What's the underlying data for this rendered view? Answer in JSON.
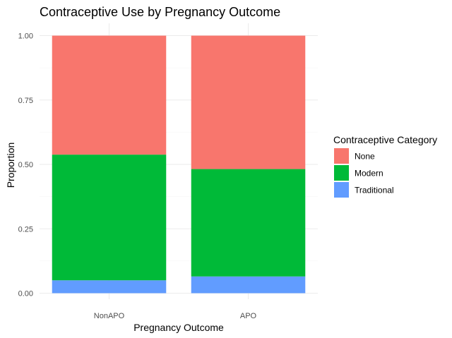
{
  "chart_data": {
    "type": "bar",
    "stacked": true,
    "title": "Contraceptive Use by Pregnancy Outcome",
    "xlabel": "Pregnancy Outcome",
    "ylabel": "Proportion",
    "categories": [
      "NonAPO",
      "APO"
    ],
    "series": [
      {
        "name": "Traditional",
        "color": "#619CFF",
        "values": [
          0.05,
          0.065
        ]
      },
      {
        "name": "Modern",
        "color": "#00BA38",
        "values": [
          0.488,
          0.417
        ]
      },
      {
        "name": "None",
        "color": "#F8766D",
        "values": [
          0.462,
          0.518
        ]
      }
    ],
    "ylim": [
      0,
      1
    ],
    "yticks": [
      0,
      0.25,
      0.5,
      0.75,
      1
    ],
    "ytick_labels": [
      "0.00",
      "0.25",
      "0.50",
      "0.75",
      "1.00"
    ],
    "grid": true,
    "legend": {
      "title": "Contraceptive Category",
      "position": "right",
      "order": [
        "None",
        "Modern",
        "Traditional"
      ]
    }
  }
}
